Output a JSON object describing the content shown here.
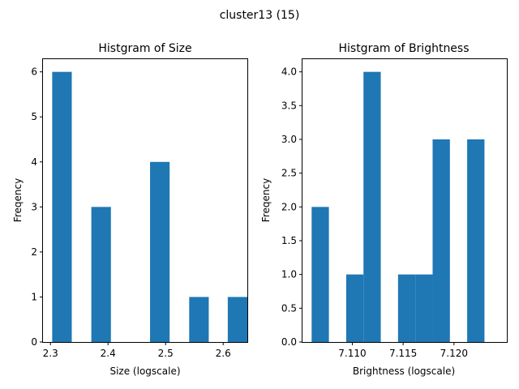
{
  "figure": {
    "suptitle": "cluster13 (15)"
  },
  "chart_data": [
    {
      "type": "bar",
      "title": "Histgram of Size",
      "xlabel": "Size (logscale)",
      "ylabel": "Freqency",
      "xlim": [
        2.287,
        2.642
      ],
      "ylim": [
        0,
        6.3
      ],
      "xticks": [
        2.3,
        2.4,
        2.5,
        2.6
      ],
      "xtick_labels": [
        "2.3",
        "2.4",
        "2.5",
        "2.6"
      ],
      "yticks": [
        0,
        1,
        2,
        3,
        4,
        5,
        6
      ],
      "ytick_labels": [
        "0",
        "1",
        "2",
        "3",
        "4",
        "5",
        "6"
      ],
      "bin_edges": [
        2.303,
        2.337,
        2.371,
        2.405,
        2.439,
        2.473,
        2.507,
        2.541,
        2.575,
        2.608,
        2.642
      ],
      "values": [
        6,
        0,
        3,
        0,
        0,
        4,
        0,
        1,
        0,
        1
      ],
      "color": "#1f77b4",
      "grid": false
    },
    {
      "type": "bar",
      "title": "Histgram of Brightness",
      "xlabel": "Brightness (logscale)",
      "ylabel": "Freqency",
      "xlim": [
        7.1051,
        7.1252
      ],
      "ylim": [
        0,
        4.2
      ],
      "xticks": [
        7.11,
        7.115,
        7.12
      ],
      "xtick_labels": [
        "7.110",
        "7.115",
        "7.120"
      ],
      "yticks": [
        0,
        0.5,
        1,
        1.5,
        2,
        2.5,
        3,
        3.5,
        4
      ],
      "ytick_labels": [
        "0.0",
        "0.5",
        "1.0",
        "1.5",
        "2.0",
        "2.5",
        "3.0",
        "3.5",
        "4.0"
      ],
      "bin_edges": [
        7.106,
        7.1077,
        7.1094,
        7.1111,
        7.1128,
        7.1145,
        7.1162,
        7.1179,
        7.1196,
        7.1213,
        7.123
      ],
      "values": [
        2,
        0,
        1,
        4,
        0,
        1,
        1,
        3,
        0,
        3
      ],
      "color": "#1f77b4",
      "grid": false
    }
  ]
}
